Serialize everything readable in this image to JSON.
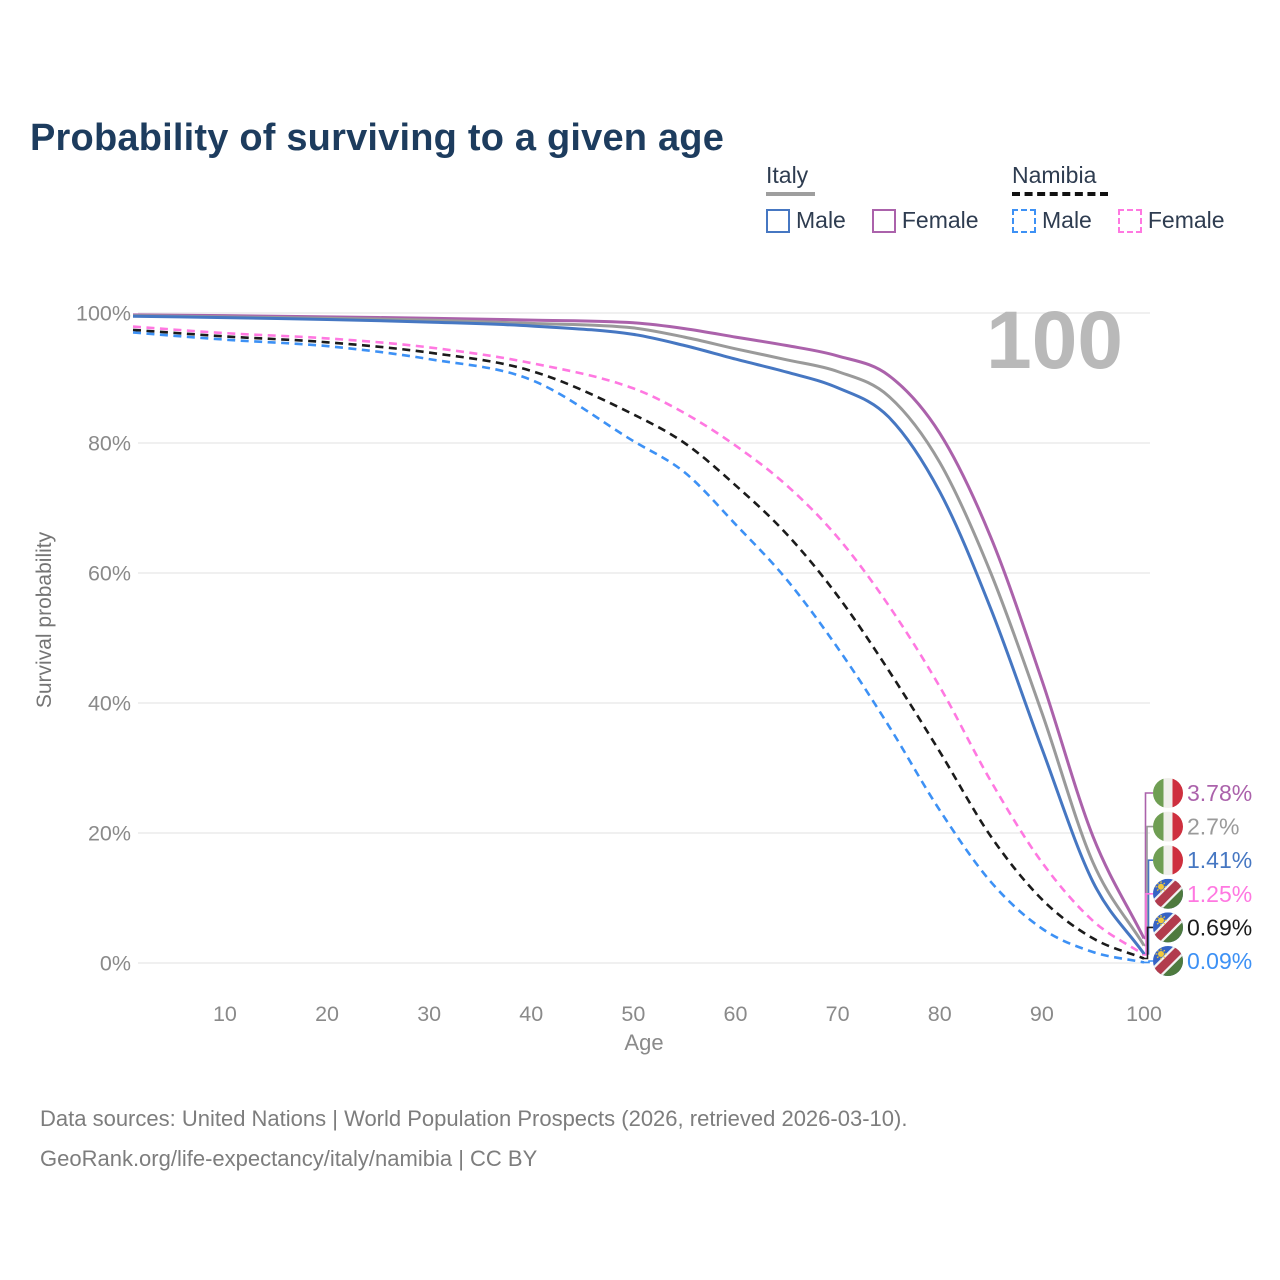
{
  "title": "Probability of surviving to a given age",
  "watermark": "100",
  "legend": {
    "italy": {
      "title": "Italy",
      "male_label": "Male",
      "female_label": "Female"
    },
    "namibia": {
      "title": "Namibia",
      "male_label": "Male",
      "female_label": "Female"
    }
  },
  "footer": {
    "line1": "Data sources: United Nations | World Population Prospects (2026, retrieved 2026-03-10).",
    "line2": "GeoRank.org/life-expectancy/italy/namibia | CC BY"
  },
  "colors": {
    "title": "#1d3c5e",
    "axis_text": "#8a8a8a",
    "grid": "#e7e7e7",
    "watermark": "#b9b9b9",
    "legend_text": "#2e3c50",
    "footer_text": "#7d7d7d"
  },
  "flag_colors": {
    "italy": {
      "green": "#6f9e53",
      "white": "#f0efeb",
      "red": "#ce2f3e"
    },
    "namibia": {
      "blue": "#3663c5",
      "white": "#f2f2f2",
      "red": "#b23b4d",
      "green": "#4e7a3e",
      "sun": "#f0c83c"
    }
  },
  "chart_data": {
    "type": "line",
    "title": "Probability of surviving to a given age",
    "xlabel": "Age",
    "ylabel": "Survival probability",
    "x_domain": [
      1,
      100
    ],
    "y_domain": [
      0,
      100
    ],
    "grid": "horizontal",
    "x_ticks": [
      "10",
      "20",
      "30",
      "40",
      "50",
      "60",
      "70",
      "80",
      "90",
      "100"
    ],
    "x_tick_values": [
      10,
      20,
      30,
      40,
      50,
      60,
      70,
      80,
      90,
      100
    ],
    "y_ticks": [
      {
        "value": 100,
        "label": "100%"
      },
      {
        "value": 80,
        "label": "80%"
      },
      {
        "value": 60,
        "label": "60%"
      },
      {
        "value": 40,
        "label": "40%"
      },
      {
        "value": 20,
        "label": "20%"
      },
      {
        "value": 0,
        "label": "0%"
      }
    ],
    "hover_age": "100",
    "ages": [
      1,
      10,
      20,
      30,
      40,
      50,
      55,
      60,
      65,
      70,
      75,
      80,
      85,
      90,
      95,
      100
    ],
    "series": [
      {
        "id": "italy-female",
        "country": "Italy",
        "sex": "Female",
        "line_style": "solid",
        "color": "#ab62ab",
        "flag": "italy",
        "end_label": "3.78%",
        "values": [
          99.7,
          99.6,
          99.4,
          99.2,
          98.9,
          98.5,
          97.6,
          96.3,
          95.0,
          93.4,
          90.4,
          81.5,
          65.5,
          43.5,
          19.5,
          3.78
        ]
      },
      {
        "id": "italy-both",
        "country": "Italy",
        "sex": "Both",
        "line_style": "solid",
        "color": "#9a9a9a",
        "flag": "italy",
        "end_label": "2.7%",
        "values": [
          99.6,
          99.4,
          99.2,
          98.9,
          98.4,
          97.7,
          96.3,
          94.5,
          92.8,
          91.0,
          87.2,
          77.0,
          60.0,
          38.5,
          15.5,
          2.7
        ]
      },
      {
        "id": "italy-male",
        "country": "Italy",
        "sex": "Male",
        "line_style": "solid",
        "color": "#4677c2",
        "flag": "italy",
        "end_label": "1.41%",
        "values": [
          99.5,
          99.3,
          99.0,
          98.6,
          98.0,
          96.7,
          95.0,
          92.9,
          90.9,
          88.5,
          84.0,
          72.5,
          54.5,
          33.0,
          12.5,
          1.41
        ]
      },
      {
        "id": "namibia-female",
        "country": "Namibia",
        "sex": "Female",
        "line_style": "dashed",
        "color": "#ff78e1",
        "flag": "namibia",
        "end_label": "1.25%",
        "values": [
          97.9,
          96.9,
          96.1,
          94.7,
          92.3,
          88.4,
          84.6,
          79.6,
          73.5,
          65.5,
          55.0,
          42.5,
          28.0,
          15.5,
          6.5,
          1.25
        ]
      },
      {
        "id": "namibia-both",
        "country": "Namibia",
        "sex": "Both",
        "line_style": "dashed",
        "color": "#1b1b1b",
        "flag": "namibia",
        "end_label": "0.69%",
        "values": [
          97.4,
          96.4,
          95.5,
          93.9,
          91.1,
          84.4,
          80.0,
          73.5,
          66.0,
          56.5,
          45.0,
          32.5,
          19.5,
          9.8,
          3.8,
          0.69
        ]
      },
      {
        "id": "namibia-male",
        "country": "Namibia",
        "sex": "Male",
        "line_style": "dashed",
        "color": "#3d91f5",
        "flag": "namibia",
        "end_label": "0.09%",
        "values": [
          97.0,
          95.9,
          94.9,
          92.9,
          89.7,
          80.3,
          75.5,
          67.5,
          59.0,
          48.5,
          36.5,
          23.5,
          12.5,
          5.3,
          1.7,
          0.09
        ]
      }
    ]
  }
}
